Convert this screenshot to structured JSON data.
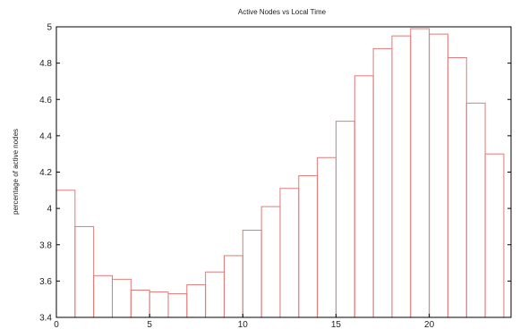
{
  "chart_data": {
    "type": "bar",
    "title": "Active Nodes vs Local Time",
    "xlabel": "",
    "ylabel": "percentage of active nodes",
    "bar_color": "#e07a7a",
    "xlim": [
      0,
      24
    ],
    "ylim": [
      3.4,
      5.0
    ],
    "x_ticks": [
      0,
      5,
      10,
      15,
      20
    ],
    "x_tick_labels": [
      "0",
      "5",
      "10",
      "15",
      "20"
    ],
    "y_ticks": [
      3.4,
      3.6,
      3.8,
      4.0,
      4.2,
      4.4,
      4.6,
      4.8,
      5.0
    ],
    "y_tick_labels": [
      "3.4",
      "3.6",
      "3.8",
      "4",
      "4.2",
      "4.4",
      "4.6",
      "4.8",
      "5"
    ],
    "categories": [
      "0",
      "1",
      "2",
      "3",
      "4",
      "5",
      "6",
      "7",
      "8",
      "9",
      "10",
      "11",
      "12",
      "13",
      "14",
      "15",
      "16",
      "17",
      "18",
      "19",
      "20",
      "21",
      "22",
      "23"
    ],
    "values": [
      4.1,
      3.9,
      3.63,
      3.61,
      3.55,
      3.54,
      3.53,
      3.58,
      3.65,
      3.74,
      3.88,
      4.01,
      4.11,
      4.18,
      4.28,
      4.48,
      4.73,
      4.88,
      4.95,
      4.99,
      4.96,
      4.83,
      4.58,
      4.3
    ],
    "grid": false,
    "legend": "none"
  }
}
